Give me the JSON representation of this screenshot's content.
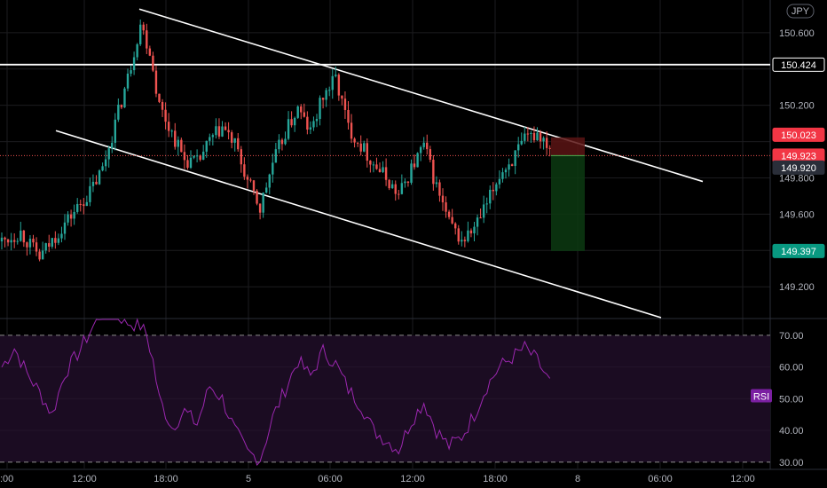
{
  "chart_data": [
    {
      "type": "candlestick",
      "currency_badge": "JPY",
      "y_ticks": [
        "150.600",
        "150.200",
        "149.800",
        "149.600",
        "149.200"
      ],
      "ylim": [
        149.03,
        150.78
      ],
      "x_ticks": [
        ":00",
        "12:00",
        "18:00",
        "5",
        "06:00",
        "12:00",
        "18:00",
        "8",
        "06:00",
        "12:00"
      ],
      "price_labels": [
        {
          "value": 150.424,
          "text": "150.424",
          "style": "white"
        },
        {
          "value": 150.023,
          "text": "150.023",
          "style": "red"
        },
        {
          "value": 149.923,
          "text": "149.923",
          "style": "red"
        },
        {
          "value": 149.92,
          "text": "149.920",
          "style": "gray"
        },
        {
          "value": 149.397,
          "text": "149.397",
          "style": "green"
        }
      ],
      "horizontal_line": 150.424,
      "current_price": 149.923,
      "anchors": [
        [
          0,
          149.45
        ],
        [
          6,
          149.5
        ],
        [
          12,
          149.36
        ],
        [
          20,
          149.55
        ],
        [
          28,
          149.72
        ],
        [
          32,
          149.85
        ],
        [
          36,
          150.1
        ],
        [
          40,
          150.35
        ],
        [
          44,
          150.65
        ],
        [
          47,
          150.5
        ],
        [
          50,
          150.2
        ],
        [
          54,
          150.05
        ],
        [
          58,
          149.9
        ],
        [
          62,
          149.88
        ],
        [
          66,
          150.0
        ],
        [
          70,
          150.08
        ],
        [
          74,
          149.98
        ],
        [
          78,
          149.78
        ],
        [
          82,
          149.63
        ],
        [
          86,
          149.88
        ],
        [
          90,
          150.05
        ],
        [
          94,
          150.18
        ],
        [
          98,
          150.05
        ],
        [
          102,
          150.25
        ],
        [
          106,
          150.35
        ],
        [
          110,
          150.08
        ],
        [
          114,
          149.98
        ],
        [
          118,
          149.88
        ],
        [
          122,
          149.8
        ],
        [
          126,
          149.7
        ],
        [
          130,
          149.85
        ],
        [
          134,
          149.98
        ],
        [
          138,
          149.75
        ],
        [
          142,
          149.55
        ],
        [
          146,
          149.45
        ],
        [
          150,
          149.52
        ],
        [
          154,
          149.65
        ],
        [
          158,
          149.82
        ],
        [
          162,
          149.9
        ],
        [
          166,
          150.0
        ],
        [
          170,
          150.05
        ],
        [
          174,
          149.98
        ]
      ]
    },
    {
      "type": "line",
      "name": "RSI",
      "y_ticks": [
        "70.00",
        "60.00",
        "50.00",
        "40.00",
        "30.00"
      ],
      "ylim": [
        28,
        75
      ],
      "levels": [
        70,
        30
      ],
      "values": [
        [
          0,
          60
        ],
        [
          4,
          66
        ],
        [
          8,
          58
        ],
        [
          12,
          52
        ],
        [
          16,
          45
        ],
        [
          20,
          58
        ],
        [
          24,
          64
        ],
        [
          28,
          71
        ],
        [
          31,
          76
        ],
        [
          33,
          80
        ],
        [
          36,
          77
        ],
        [
          40,
          74
        ],
        [
          44,
          73
        ],
        [
          46,
          70
        ],
        [
          48,
          62
        ],
        [
          50,
          50
        ],
        [
          54,
          41
        ],
        [
          58,
          46
        ],
        [
          62,
          42
        ],
        [
          66,
          54
        ],
        [
          70,
          50
        ],
        [
          74,
          40
        ],
        [
          78,
          33
        ],
        [
          82,
          31
        ],
        [
          86,
          44
        ],
        [
          90,
          53
        ],
        [
          94,
          62
        ],
        [
          98,
          57
        ],
        [
          102,
          65
        ],
        [
          106,
          61
        ],
        [
          110,
          53
        ],
        [
          114,
          48
        ],
        [
          118,
          40
        ],
        [
          122,
          37
        ],
        [
          126,
          34
        ],
        [
          130,
          43
        ],
        [
          134,
          49
        ],
        [
          138,
          40
        ],
        [
          142,
          35
        ],
        [
          146,
          38
        ],
        [
          150,
          45
        ],
        [
          154,
          54
        ],
        [
          158,
          60
        ],
        [
          162,
          63
        ],
        [
          166,
          66
        ],
        [
          170,
          62
        ],
        [
          174,
          55
        ]
      ]
    }
  ]
}
